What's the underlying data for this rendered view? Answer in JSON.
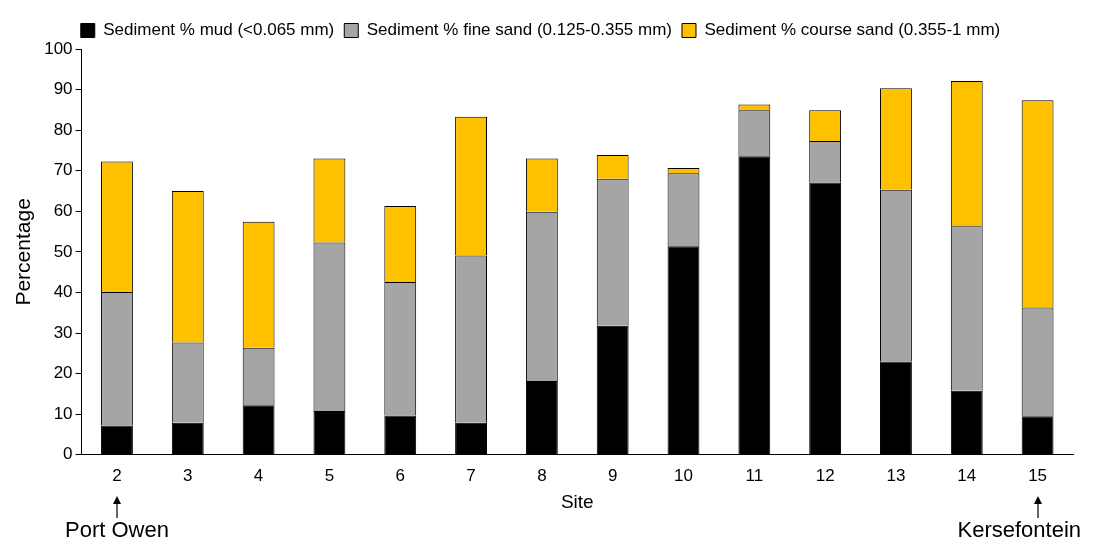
{
  "chart_data": {
    "type": "bar",
    "stacked": true,
    "xlabel": "Site",
    "ylabel": "Percentage",
    "categories": [
      "2",
      "3",
      "4",
      "5",
      "6",
      "7",
      "8",
      "9",
      "10",
      "11",
      "12",
      "13",
      "14",
      "15"
    ],
    "series": [
      {
        "name": "Sediment % mud (<0.065 mm)",
        "color": "#000000",
        "values": [
          7.2,
          7.9,
          12.2,
          10.8,
          9.7,
          7.9,
          18.2,
          31.8,
          51.4,
          73.6,
          67.1,
          23.0,
          15.8,
          9.5
        ]
      },
      {
        "name": "Sediment % fine sand (0.125-0.355 mm)",
        "color": "#a5a5a5",
        "values": [
          32.9,
          19.8,
          14.2,
          41.5,
          32.9,
          41.2,
          41.7,
          36.2,
          18.0,
          11.3,
          10.2,
          42.3,
          40.5,
          26.8
        ]
      },
      {
        "name": "Sediment % course sand (0.355-1 mm)",
        "color": "#ffc000",
        "values": [
          32.2,
          37.3,
          31.0,
          20.7,
          18.7,
          34.2,
          13.1,
          5.9,
          1.3,
          1.4,
          7.6,
          25.0,
          35.8,
          51.1
        ]
      }
    ],
    "ylim": [
      0,
      100
    ],
    "yticks": [
      0,
      10,
      20,
      30,
      40,
      50,
      60,
      70,
      80,
      90,
      100
    ],
    "grid": false,
    "legend": "top",
    "annotations": [
      "Port Owen",
      "Kersefontein"
    ]
  }
}
